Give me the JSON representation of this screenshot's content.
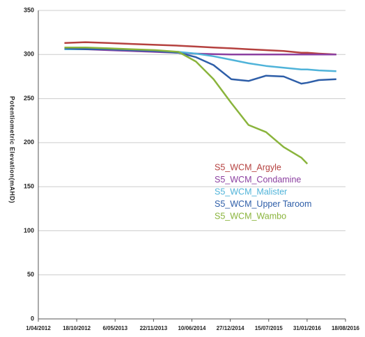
{
  "chart_data": {
    "type": "line",
    "y_label": "Potentiometric Elevation(mAHD)",
    "x": [
      "15/08/2012",
      "1/12/2012",
      "1/04/2013",
      "1/08/2013",
      "1/12/2013",
      "1/04/2014",
      "1/07/2014",
      "1/10/2014",
      "1/01/2015",
      "1/04/2015",
      "1/07/2015",
      "1/10/2015",
      "1/01/2016",
      "1/02/2016",
      "1/04/2016",
      "1/07/2016"
    ],
    "series": [
      {
        "name": "S5_WCM_Argyle",
        "color": "#b5413f",
        "values": [
          313,
          314,
          313,
          312,
          311,
          310,
          309,
          308,
          307,
          306,
          305,
          304,
          302,
          302,
          301,
          300
        ]
      },
      {
        "name": "S5_WCM_Condamine",
        "color": "#8b3fa0",
        "values": [
          307,
          306,
          305,
          304,
          303,
          302,
          301,
          300.5,
          300,
          300,
          300,
          300,
          300,
          300,
          300,
          300
        ]
      },
      {
        "name": "S5_WCM_Malister",
        "color": "#4fb3d9",
        "values": [
          306,
          306,
          306,
          305,
          304,
          303,
          301,
          298,
          294,
          290,
          287,
          285,
          283,
          283,
          282,
          281
        ]
      },
      {
        "name": "S5_WCM_Upper Taroom",
        "color": "#2e5ea8",
        "values": [
          307,
          306,
          306,
          305,
          304,
          302,
          297,
          288,
          272,
          270,
          276,
          275,
          267,
          268,
          271,
          272
        ]
      },
      {
        "name": "S5_WCM_Wambo",
        "color": "#8ab43c",
        "values": [
          308,
          308,
          307,
          306,
          305,
          303,
          292,
          272,
          245,
          220,
          212,
          195,
          183,
          176,
          null,
          null
        ]
      }
    ],
    "xlim": [
      "1/04/2012",
      "18/08/2016"
    ],
    "xticks": [
      "1/04/2012",
      "18/10/2012",
      "6/05/2013",
      "22/11/2013",
      "10/06/2014",
      "27/12/2014",
      "15/07/2015",
      "31/01/2016",
      "18/08/2016"
    ],
    "ylim": [
      0,
      350
    ],
    "yticks": [
      0,
      50,
      100,
      150,
      200,
      250,
      300,
      350
    ],
    "grid": true
  }
}
